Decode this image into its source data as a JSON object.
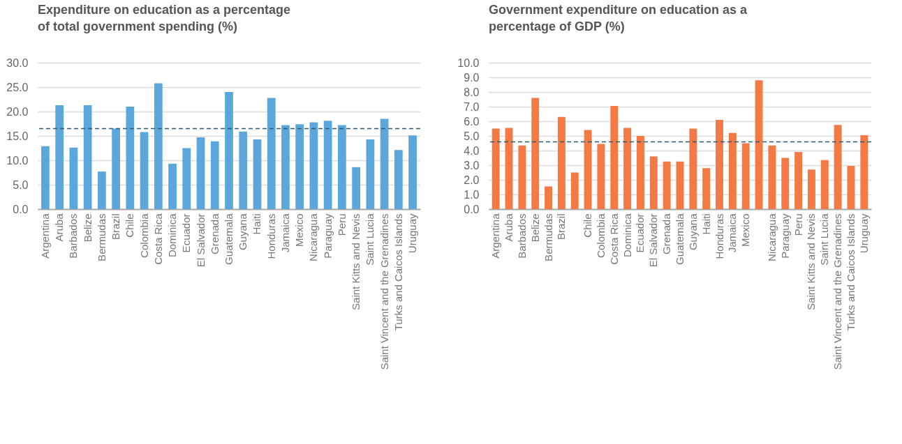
{
  "chart_data": [
    {
      "type": "bar",
      "title": "Expenditure on education as a percentage of total government spending (%)",
      "categories": [
        "Argentina",
        "Aruba",
        "Barbados",
        "Belize",
        "Bermudas",
        "Brazil",
        "Chile",
        "Colombia",
        "Costa Rica",
        "Dominica",
        "Ecuador",
        "El Salvador",
        "Grenada",
        "Guatemala",
        "Guyana",
        "Haiti",
        "Honduras",
        "Jamaica",
        "Mexico",
        "Nicaragua",
        "Paraguay",
        "Peru",
        "Saint Kitts and Nevis",
        "Saint Lucia",
        "Saint Vincent and the Grenadines",
        "Turks and Caicos Islands",
        "Uruguay"
      ],
      "values": [
        12.9,
        21.3,
        12.6,
        21.3,
        7.7,
        16.5,
        21.0,
        15.8,
        25.8,
        9.3,
        12.5,
        14.7,
        13.9,
        24.0,
        15.9,
        14.3,
        22.8,
        17.2,
        17.4,
        17.8,
        18.1,
        17.2,
        8.6,
        14.3,
        18.5,
        12.1,
        15.1
      ],
      "color": "#5ba7db",
      "ylim": [
        0,
        30
      ],
      "yticks": [
        {
          "value": 0,
          "label": "0.0"
        },
        {
          "value": 5,
          "label": "5.0"
        },
        {
          "value": 10,
          "label": "10.0"
        },
        {
          "value": 15,
          "label": "15.0"
        },
        {
          "value": 20,
          "label": "20.0"
        },
        {
          "value": 25,
          "label": "25.0"
        },
        {
          "value": 30,
          "label": "30.0"
        }
      ],
      "grid": "y",
      "ref_lines": [
        {
          "axis": "y",
          "value": 16.5,
          "color": "#2e5a73",
          "line_style": "dashed"
        }
      ]
    },
    {
      "type": "bar",
      "title": "Government expenditure on education as a percentage of GDP (%)",
      "categories": [
        "Argentina",
        "Aruba",
        "Barbados",
        "Belize",
        "Bermudas",
        "Brazil",
        null,
        "Chile",
        "Colombia",
        "Costa Rica",
        "Dominica",
        "Ecuador",
        "El Salvador",
        "Grenada",
        "Guatemala",
        "Guyana",
        "Haiti",
        "Honduras",
        "Jamaica",
        "Mexico",
        null,
        "Nicaragua",
        "Paraguay",
        "Peru",
        "Saint Kitts and Nevis",
        "Saint Lucia",
        "Saint Vincent and the Grenadines",
        "Turks and Caicos Islands",
        "Uruguay"
      ],
      "values": [
        5.5,
        5.55,
        4.35,
        7.6,
        1.55,
        6.3,
        2.5,
        5.4,
        4.45,
        7.05,
        5.55,
        5.0,
        3.6,
        3.25,
        3.25,
        5.5,
        2.8,
        6.1,
        5.2,
        4.5,
        8.8,
        4.35,
        3.5,
        3.9,
        2.7,
        3.35,
        5.75,
        2.95,
        5.05
      ],
      "color": "#f47a45",
      "ylim": [
        0,
        10
      ],
      "yticks": [
        {
          "value": 0,
          "label": "0.0"
        },
        {
          "value": 1,
          "label": "1.0"
        },
        {
          "value": 2,
          "label": "2.0"
        },
        {
          "value": 3,
          "label": "3.0"
        },
        {
          "value": 4,
          "label": "4.0"
        },
        {
          "value": 5,
          "label": "5.0"
        },
        {
          "value": 6,
          "label": "6.0"
        },
        {
          "value": 7,
          "label": "7.0"
        },
        {
          "value": 8,
          "label": "8.0"
        },
        {
          "value": 9,
          "label": "9.0"
        },
        {
          "value": 10,
          "label": "10.0"
        }
      ],
      "grid": "y",
      "ref_lines": [
        {
          "axis": "y",
          "value": 4.6,
          "color": "#2e5a73",
          "line_style": "dashed"
        }
      ]
    }
  ]
}
